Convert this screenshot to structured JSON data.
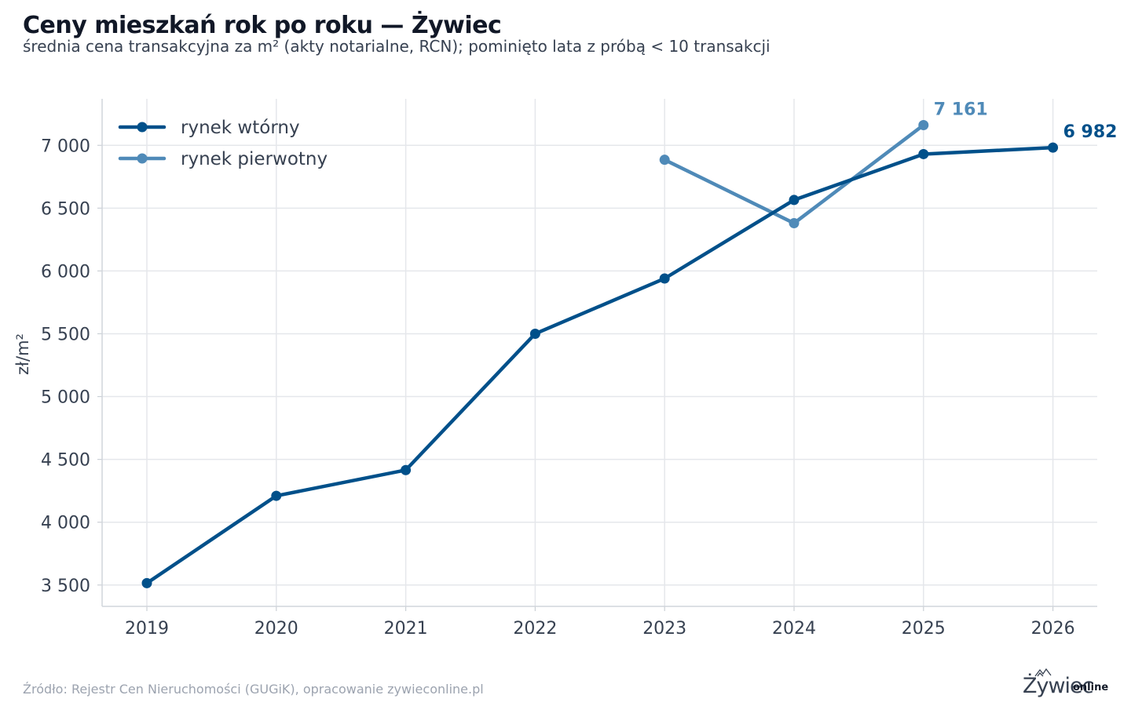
{
  "title": "Ceny mieszkań rok po roku — Żywiec",
  "subtitle": "średnia cena transakcyjna za m² (akty notarialne, RCN); pominięto lata z próbą < 10 transakcji",
  "source": "Źródło: Rejestr Cen Nieruchomości (GUGiK), opracowanie zywieconline.pl",
  "logo": {
    "text": "Żywiec",
    "suffix": "online",
    "icon": "mountains-icon"
  },
  "colors": {
    "secondary": "#00508a",
    "primary": "#4f8ab8",
    "grid": "#e5e7eb"
  },
  "chart_data": {
    "type": "line",
    "ylabel": "zł/m²",
    "xlabel": "",
    "x": [
      2019,
      2020,
      2021,
      2022,
      2023,
      2024,
      2025,
      2026
    ],
    "x_tick_labels": [
      "2019",
      "2020",
      "2021",
      "2022",
      "2023",
      "2024",
      "2025",
      "2026"
    ],
    "ylim": [
      3330,
      7370
    ],
    "y_ticks": [
      3500,
      4000,
      4500,
      5000,
      5500,
      6000,
      6500,
      7000
    ],
    "y_tick_labels": [
      "3 500",
      "4 000",
      "4 500",
      "5 000",
      "5 500",
      "6 000",
      "6 500",
      "7 000"
    ],
    "grid": true,
    "legend": "top-left",
    "series": [
      {
        "name": "rynek wtórny",
        "color": "#00508a",
        "values": [
          3515,
          4210,
          4415,
          5500,
          5940,
          6565,
          6930,
          6982
        ],
        "end_label": "6 982"
      },
      {
        "name": "rynek pierwotny",
        "color": "#4f8ab8",
        "values": [
          null,
          null,
          null,
          null,
          6885,
          6380,
          7161,
          null
        ],
        "end_label": "7 161"
      }
    ]
  }
}
